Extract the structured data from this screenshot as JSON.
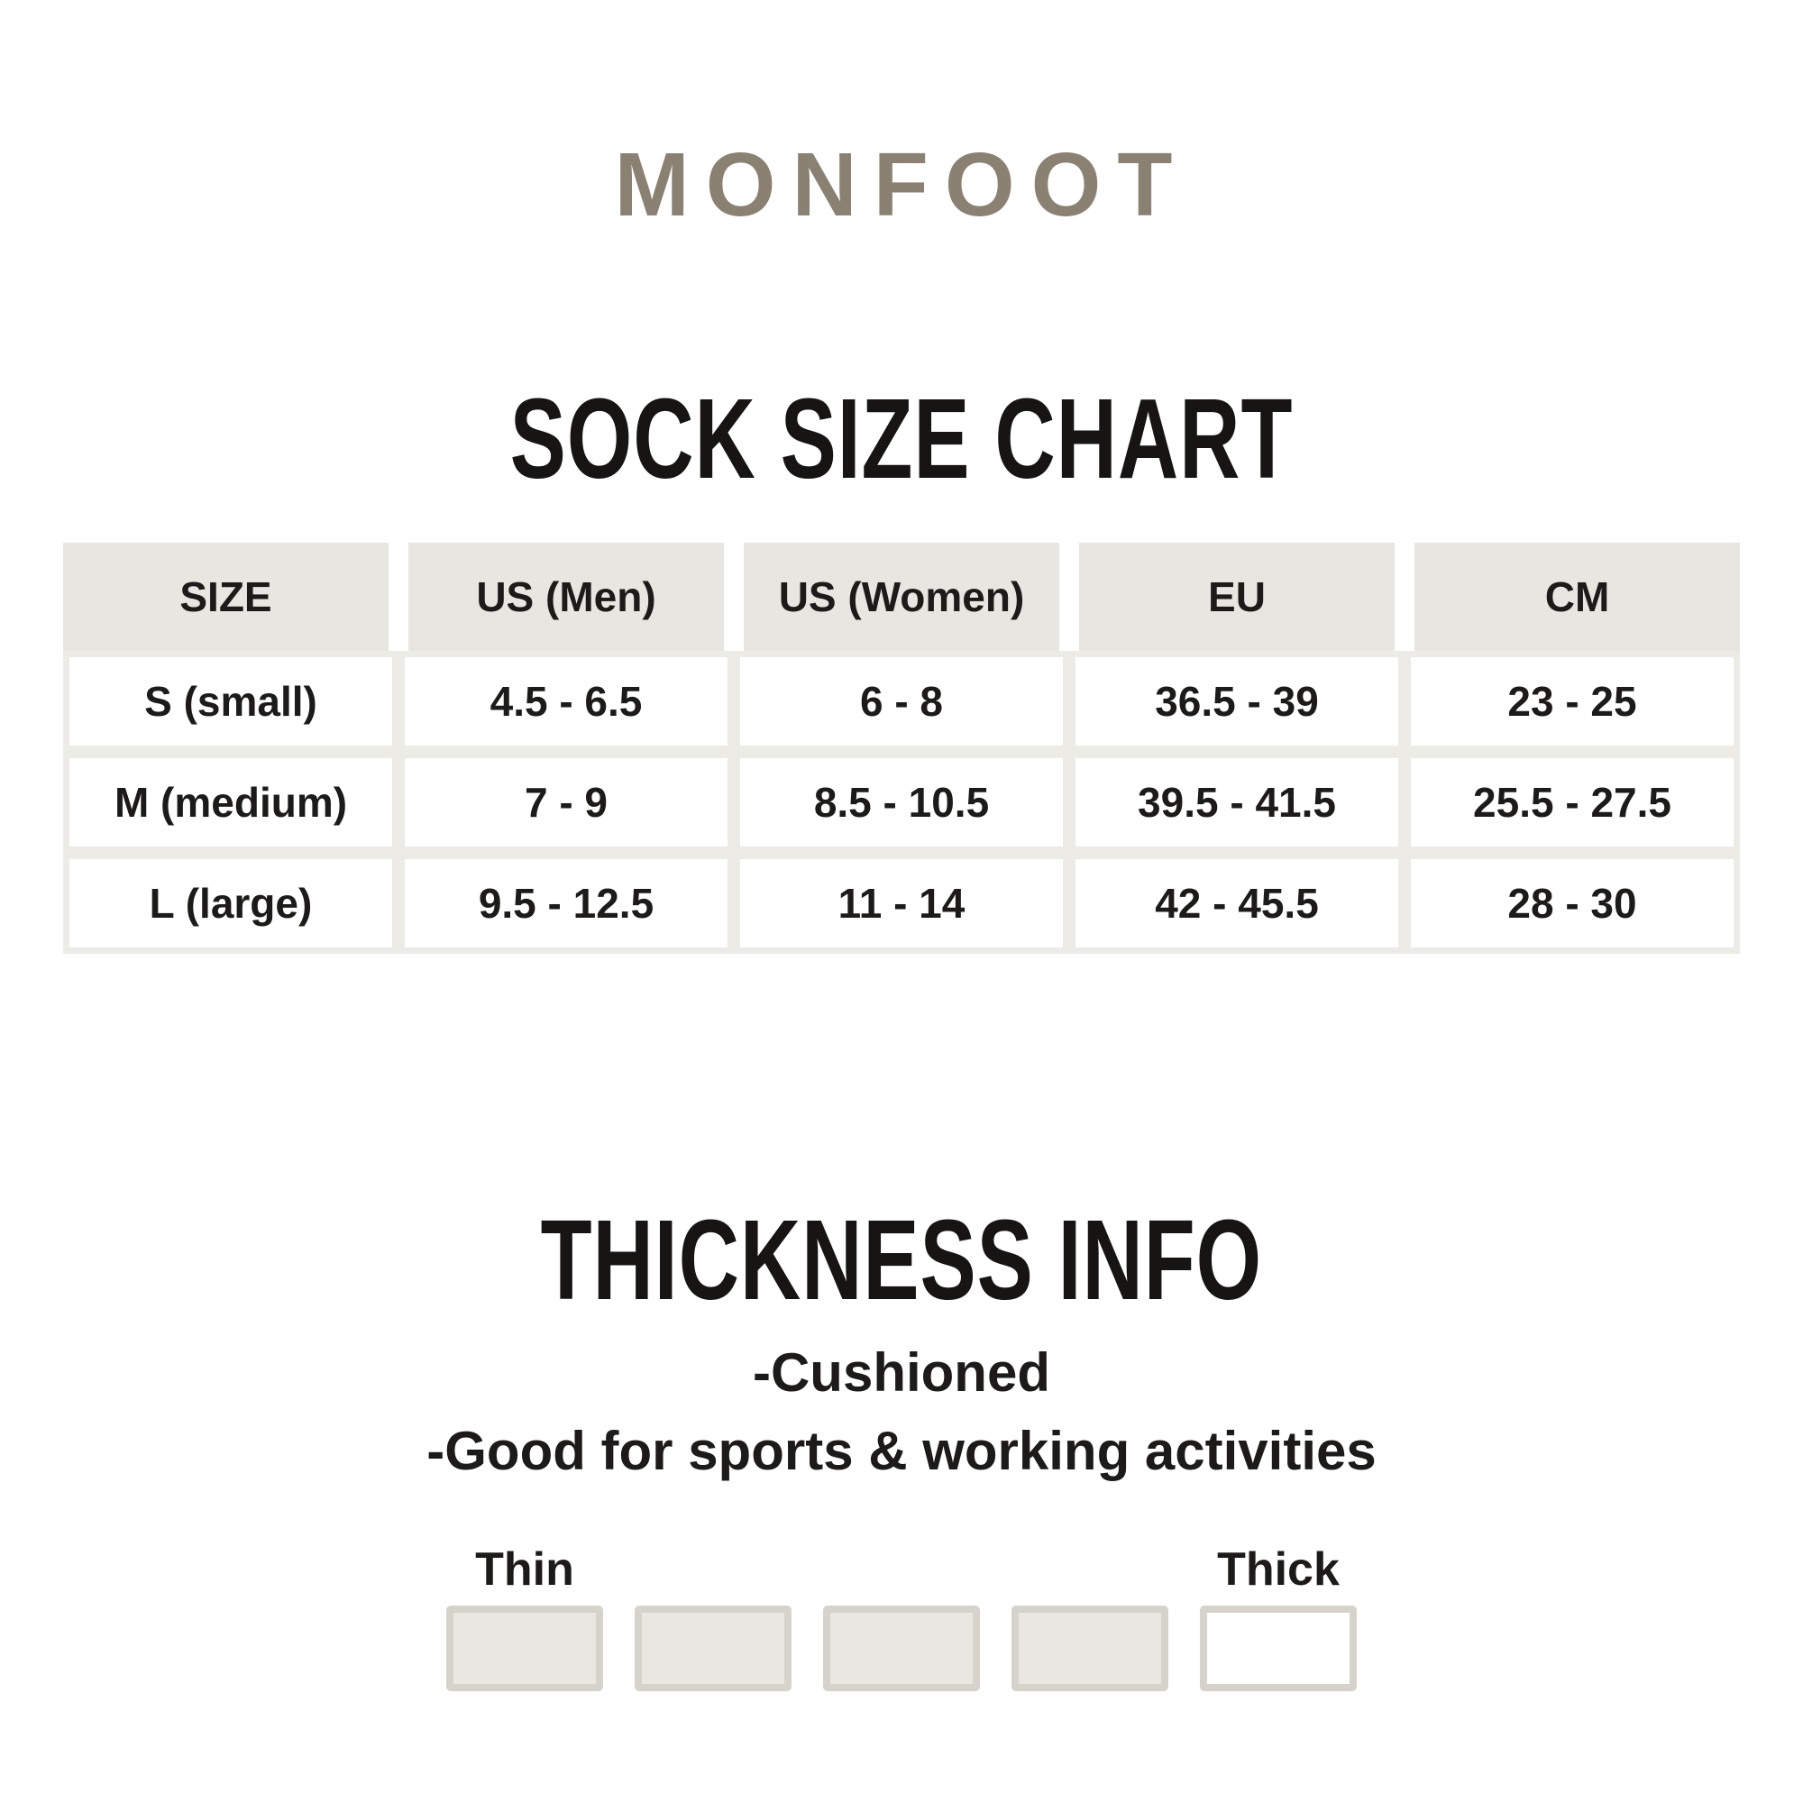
{
  "brand": "MONFOOT",
  "size_chart": {
    "title": "SOCK SIZE CHART",
    "columns": [
      "SIZE",
      "US (Men)",
      "US (Women)",
      "EU",
      "CM"
    ],
    "rows": [
      [
        "S (small)",
        "4.5 - 6.5",
        "6 - 8",
        "36.5 - 39",
        "23 - 25"
      ],
      [
        "M (medium)",
        "7 - 9",
        "8.5 - 10.5",
        "39.5 - 41.5",
        "25.5 - 27.5"
      ],
      [
        "L (large)",
        "9.5 - 12.5",
        "11 - 14",
        "42 - 45.5",
        "28 - 30"
      ]
    ]
  },
  "thickness": {
    "title": "THICKNESS INFO",
    "notes": [
      "-Cushioned",
      "-Good for sports & working activities"
    ],
    "scale": {
      "min_label": "Thin",
      "max_label": "Thick",
      "levels": 5,
      "filled_levels": 4
    }
  },
  "colors": {
    "brand": "#8a8173",
    "heading_text": "#171513",
    "table_header_bg": "#e8e6e1",
    "table_grid": "#ecebe6",
    "box_fill": "#e9e7e2",
    "box_border": "#d6d3cb",
    "box_empty_fill": "#ffffff"
  },
  "chart_data": {
    "type": "table",
    "title": "SOCK SIZE CHART",
    "columns": [
      "SIZE",
      "US (Men)",
      "US (Women)",
      "EU",
      "CM"
    ],
    "rows": [
      [
        "S (small)",
        "4.5 - 6.5",
        "6 - 8",
        "36.5 - 39",
        "23 - 25"
      ],
      [
        "M (medium)",
        "7 - 9",
        "8.5 - 10.5",
        "39.5 - 41.5",
        "25.5 - 27.5"
      ],
      [
        "L (large)",
        "9.5 - 12.5",
        "11 - 14",
        "42 - 45.5",
        "28 - 30"
      ]
    ]
  }
}
